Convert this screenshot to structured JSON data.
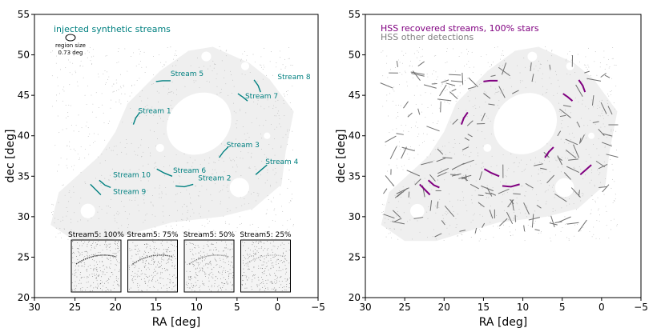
{
  "chart_data": [
    {
      "type": "scatter",
      "panel": "left",
      "xlabel": "RA [deg]",
      "ylabel": "dec [deg]",
      "xlim": [
        30,
        -5
      ],
      "ylim": [
        20,
        55
      ],
      "xticks": [
        30,
        25,
        20,
        15,
        10,
        5,
        0,
        -5
      ],
      "xtick_labels": [
        "30",
        "25",
        "20",
        "15",
        "10",
        "5",
        "0",
        "−5"
      ],
      "yticks": [
        20,
        25,
        30,
        35,
        40,
        45,
        50,
        55
      ],
      "legend_title": "injected synthetic streams",
      "region_size_label": "region size",
      "region_size_value": "0.73 deg",
      "streams": [
        {
          "name": "Stream 1",
          "label_pos": [
            17.2,
            42.8
          ],
          "curve": [
            [
              17.8,
              41.4
            ],
            [
              17.5,
              42.2
            ],
            [
              17.0,
              42.9
            ]
          ]
        },
        {
          "name": "Stream 2",
          "label_pos": [
            9.8,
            34.5
          ],
          "curve": [
            [
              12.6,
              33.8
            ],
            [
              11.5,
              33.7
            ],
            [
              10.4,
              34.0
            ]
          ]
        },
        {
          "name": "Stream 3",
          "label_pos": [
            6.3,
            38.6
          ],
          "curve": [
            [
              7.2,
              37.3
            ],
            [
              6.7,
              38.0
            ],
            [
              6.1,
              38.6
            ]
          ]
        },
        {
          "name": "Stream 4",
          "label_pos": [
            1.5,
            36.5
          ],
          "curve": [
            [
              2.7,
              35.2
            ],
            [
              2.0,
              35.8
            ],
            [
              1.3,
              36.4
            ]
          ]
        },
        {
          "name": "Stream 5",
          "label_pos": [
            13.2,
            47.4
          ],
          "curve": [
            [
              15.0,
              46.7
            ],
            [
              14.2,
              46.8
            ],
            [
              13.2,
              46.8
            ]
          ]
        },
        {
          "name": "Stream 6",
          "label_pos": [
            12.9,
            35.4
          ],
          "curve": [
            [
              14.9,
              35.9
            ],
            [
              14.0,
              35.4
            ],
            [
              13.0,
              35.0
            ]
          ]
        },
        {
          "name": "Stream 7",
          "label_pos": [
            4.0,
            44.6
          ],
          "curve": [
            [
              4.9,
              45.2
            ],
            [
              4.3,
              44.8
            ],
            [
              3.7,
              44.3
            ]
          ]
        },
        {
          "name": "Stream 8",
          "label_pos": [
            0.0,
            47.0
          ],
          "curve": [
            [
              2.9,
              46.9
            ],
            [
              2.4,
              46.2
            ],
            [
              2.1,
              45.4
            ]
          ]
        },
        {
          "name": "Stream 9",
          "label_pos": [
            20.3,
            32.8
          ],
          "curve": [
            [
              23.1,
              34.0
            ],
            [
              22.4,
              33.3
            ],
            [
              21.8,
              32.7
            ]
          ]
        },
        {
          "name": "Stream 10",
          "label_pos": [
            20.3,
            34.9
          ],
          "curve": [
            [
              22.0,
              34.5
            ],
            [
              21.3,
              33.9
            ],
            [
              20.6,
              33.6
            ]
          ]
        }
      ],
      "insets": [
        {
          "title": "Stream5: 100%",
          "stream_fraction": 1.0
        },
        {
          "title": "Stream5: 75%",
          "stream_fraction": 0.75
        },
        {
          "title": "Stream5: 50%",
          "stream_fraction": 0.5
        },
        {
          "title": "Stream5: 25%",
          "stream_fraction": 0.25
        }
      ]
    },
    {
      "type": "scatter",
      "panel": "right",
      "xlabel": "RA [deg]",
      "ylabel": "dec [deg]",
      "xlim": [
        30,
        -5
      ],
      "ylim": [
        20,
        55
      ],
      "xticks": [
        30,
        25,
        20,
        15,
        10,
        5,
        0,
        -5
      ],
      "xtick_labels": [
        "30",
        "25",
        "20",
        "15",
        "10",
        "5",
        "0",
        "−5"
      ],
      "yticks": [
        20,
        25,
        30,
        35,
        40,
        45,
        50,
        55
      ],
      "legend": [
        {
          "label": "HSS recovered streams, 100% stars",
          "color": "#800080"
        },
        {
          "label": "HSS other detections",
          "color": "#808080"
        }
      ]
    }
  ]
}
